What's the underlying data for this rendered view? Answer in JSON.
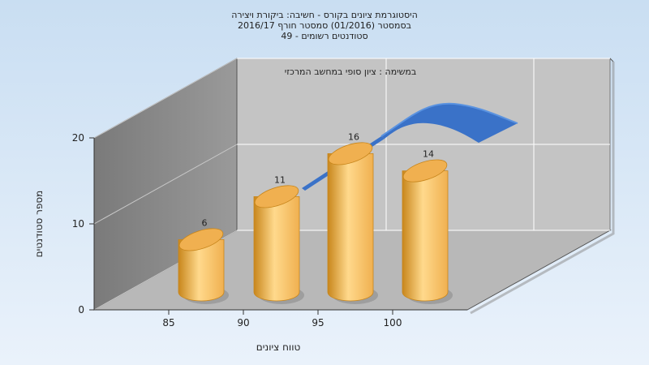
{
  "chart_data": {
    "type": "bar",
    "title_lines": [
      "היסטוגרמת ציונים בקורס - חשיבה: ביקורת ויצירה",
      "בסמסטר  (01/2016)  סמסטר חורף 2016/17",
      "סטודנטים רשומים - 49"
    ],
    "subtitle": "במשימה : ציון סופי במחשב המרכזי",
    "xlabel": "טווח ציונים",
    "ylabel": "מספר סטודנטים",
    "categories": [
      "85",
      "90",
      "95",
      "100"
    ],
    "values": [
      6,
      11,
      16,
      14
    ],
    "data_labels": [
      "6",
      "11",
      "16",
      "14"
    ],
    "y_ticks": [
      "0",
      "10",
      "20"
    ],
    "ylim": [
      0,
      20
    ],
    "grid": true,
    "bar_style": "3d-cylinder",
    "has_trend_line": true,
    "colors": {
      "background_top": "#c9def2",
      "background_bottom": "#eaf2fb",
      "bar_light": "#ffd98c",
      "bar_mid": "#f0b050",
      "bar_dark": "#c8861c",
      "trend": "#3a72c8",
      "wall_back": "#c0c0c0",
      "wall_side": "#8a8a8a",
      "floor": "#b4b4b4"
    }
  }
}
